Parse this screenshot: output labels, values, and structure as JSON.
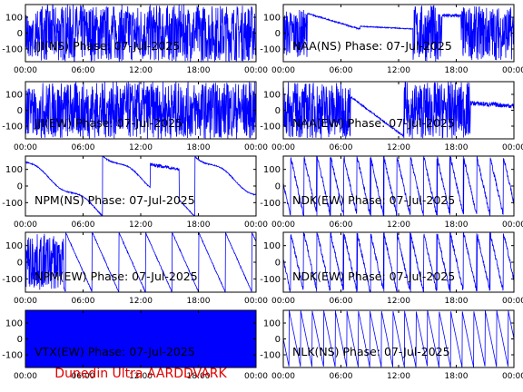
{
  "footer": "Dunedin Ultra AARDDVARK",
  "colors": {
    "trace": "#0000ff",
    "axis": "#000000",
    "text": "#000000",
    "footer": "#e00000"
  },
  "chart_data": [
    {
      "type": "line",
      "title": "JJI(NS) Phase: 07-Jul-2025",
      "xticks": [
        "00:00",
        "06:00",
        "12:00",
        "18:00",
        "00:00"
      ],
      "yticks": [
        100,
        0,
        -100
      ],
      "xlim": [
        0,
        24
      ],
      "ylim": [
        -180,
        180
      ],
      "shape": "dense-from-start"
    },
    {
      "type": "line",
      "title": "NAA(NS) Phase: 07-Jul-2025",
      "xticks": [
        "00:00",
        "06:00",
        "12:00",
        "18:00",
        "00:00"
      ],
      "yticks": [
        100,
        0,
        -100
      ],
      "xlim": [
        0,
        24
      ],
      "ylim": [
        -180,
        180
      ],
      "shape": "mixed-high"
    },
    {
      "type": "line",
      "title": "JJI(EW) Phase: 07-Jul-2025",
      "xticks": [
        "00:00",
        "06:00",
        "12:00",
        "18:00",
        "00:00"
      ],
      "yticks": [
        100,
        0,
        -100
      ],
      "xlim": [
        0,
        24
      ],
      "ylim": [
        -180,
        180
      ],
      "shape": "dense-from-start"
    },
    {
      "type": "line",
      "title": "NAA(EW) Phase: 07-Jul-2025",
      "xticks": [
        "00:00",
        "06:00",
        "12:00",
        "18:00",
        "00:00"
      ],
      "yticks": [
        100,
        0,
        -100
      ],
      "xlim": [
        0,
        24
      ],
      "ylim": [
        -180,
        180
      ],
      "shape": "mixed-low"
    },
    {
      "type": "line",
      "title": "NPM(NS) Phase: 07-Jul-2025",
      "xticks": [
        "00:00",
        "06:00",
        "12:00",
        "18:00",
        "00:00"
      ],
      "yticks": [
        100,
        0,
        -100
      ],
      "xlim": [
        0,
        24
      ],
      "ylim": [
        -180,
        180
      ],
      "shape": "slow-drift"
    },
    {
      "type": "line",
      "title": "NDK(EW) Phase: 07-Jul-2025",
      "xticks": [
        "00:00",
        "06:00",
        "12:00",
        "18:00",
        "00:00"
      ],
      "yticks": [
        100,
        0,
        -100
      ],
      "xlim": [
        0,
        24
      ],
      "ylim": [
        -180,
        180
      ],
      "shape": "sawtooth-fast"
    },
    {
      "type": "line",
      "title": "NPM(EW) Phase: 07-Jul-2025",
      "xticks": [
        "00:00",
        "06:00",
        "12:00",
        "18:00",
        "00:00"
      ],
      "yticks": [
        100,
        0,
        -100
      ],
      "xlim": [
        0,
        24
      ],
      "ylim": [
        -180,
        180
      ],
      "shape": "sawtooth-slow"
    },
    {
      "type": "line",
      "title": "NDK(EW) Phase: 07-Jul-2025",
      "xticks": [
        "00:00",
        "06:00",
        "12:00",
        "18:00",
        "00:00"
      ],
      "yticks": [
        100,
        0,
        -100
      ],
      "xlim": [
        0,
        24
      ],
      "ylim": [
        -180,
        180
      ],
      "shape": "sawtooth-fast"
    },
    {
      "type": "line",
      "title": "VTX(EW) Phase: 07-Jul-2025",
      "xticks": [
        "00:00",
        "06:00",
        "12:00",
        "18:00",
        "00:00"
      ],
      "yticks": [
        100,
        0,
        -100
      ],
      "xlim": [
        0,
        24
      ],
      "ylim": [
        -180,
        180
      ],
      "shape": "solid"
    },
    {
      "type": "line",
      "title": "NLK(NS) Phase: 07-Jul-2025",
      "xticks": [
        "00:00",
        "06:00",
        "12:00",
        "18:00",
        "00:00"
      ],
      "yticks": [
        100,
        0,
        -100
      ],
      "xlim": [
        0,
        24
      ],
      "ylim": [
        -180,
        180
      ],
      "shape": "sawtooth-regular"
    }
  ]
}
